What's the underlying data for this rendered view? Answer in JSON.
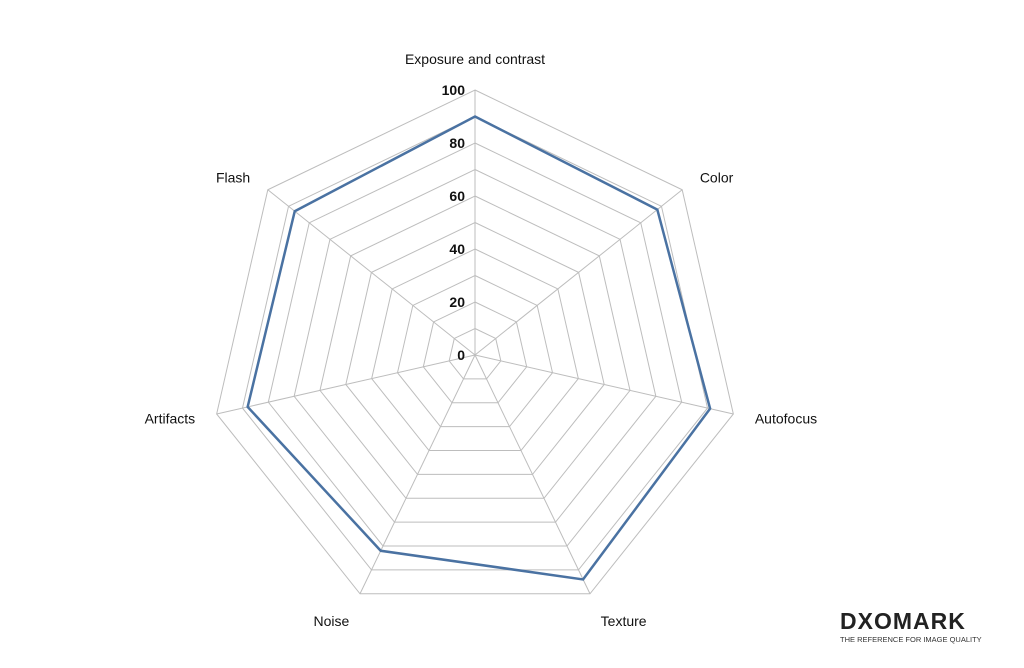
{
  "chart_data": {
    "type": "radar",
    "categories": [
      "Exposure and contrast",
      "Color",
      "Autofocus",
      "Texture",
      "Noise",
      "Artifacts",
      "Flash"
    ],
    "series": [
      {
        "values": [
          90,
          88,
          91,
          94,
          82,
          88,
          87
        ]
      }
    ],
    "rlim": [
      0,
      100
    ],
    "ticks": [
      "0",
      "20",
      "40",
      "60",
      "80",
      "100"
    ],
    "grid": true
  },
  "colors": {
    "series": "#4a72a2",
    "grid": "#bdbdbd"
  },
  "logo": {
    "wordmark": "DXOMARK",
    "tagline": "THE REFERENCE FOR IMAGE QUALITY"
  }
}
